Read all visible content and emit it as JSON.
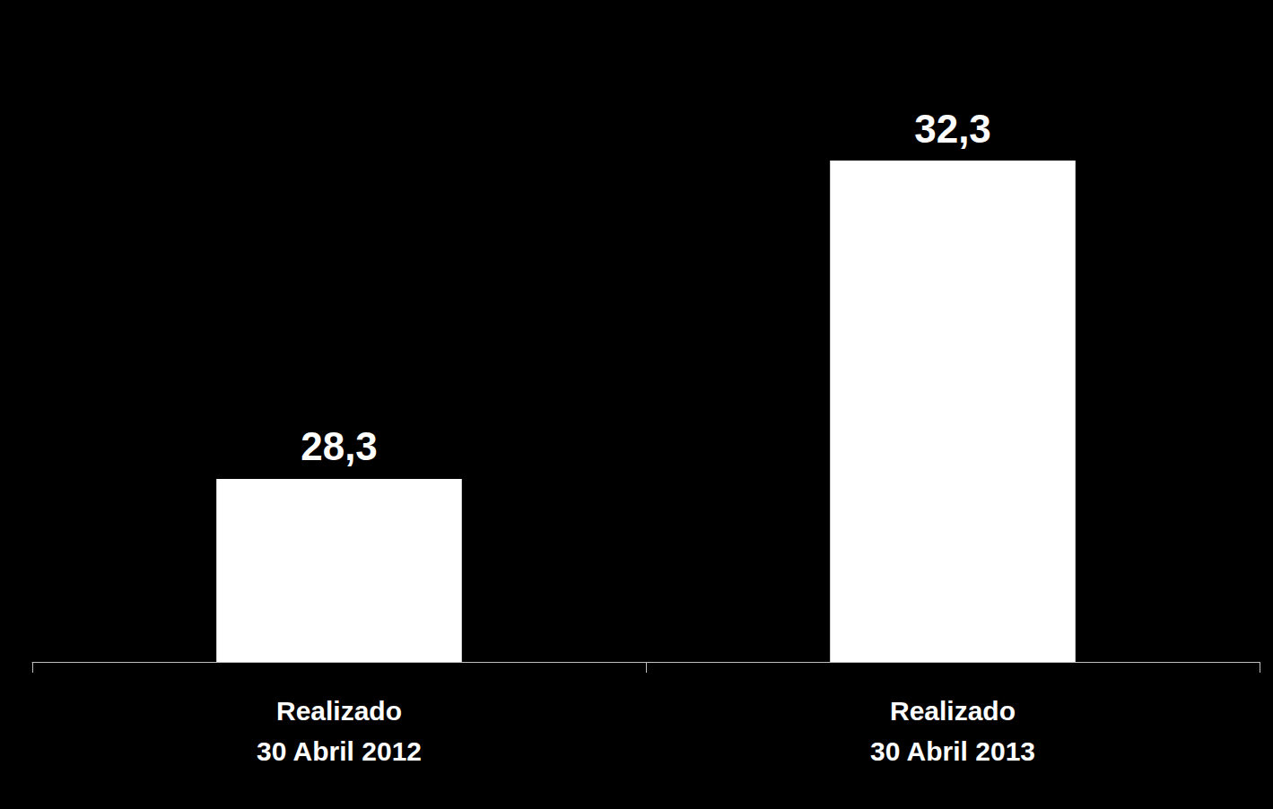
{
  "chart_data": {
    "type": "bar",
    "categories": [
      "Realizado\n30 Abril 2012",
      "Realizado\n30 Abril 2013"
    ],
    "values": [
      28.3,
      32.3
    ],
    "value_labels": [
      "28,3",
      "32,3"
    ],
    "color": "#ffffff",
    "ylim": [
      26,
      33
    ],
    "grid": false,
    "data_labels": true,
    "tick_labels": "x"
  }
}
